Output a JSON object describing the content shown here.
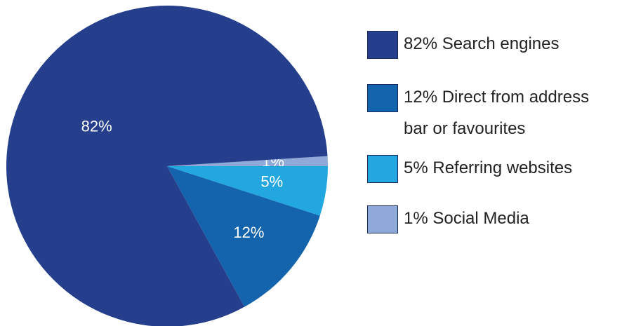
{
  "chart_data": {
    "type": "pie",
    "categories": [
      "82% Search engines",
      "12% Direct from address bar or favourites",
      "5% Referring websites",
      "1% Social Media"
    ],
    "values": [
      82,
      12,
      5,
      1
    ],
    "value_labels": [
      "82%",
      "12%",
      "5%",
      "1%"
    ],
    "colors": [
      "#263f8c",
      "#1464ad",
      "#22a7e0",
      "#8fa9d9"
    ],
    "legend": "right"
  }
}
